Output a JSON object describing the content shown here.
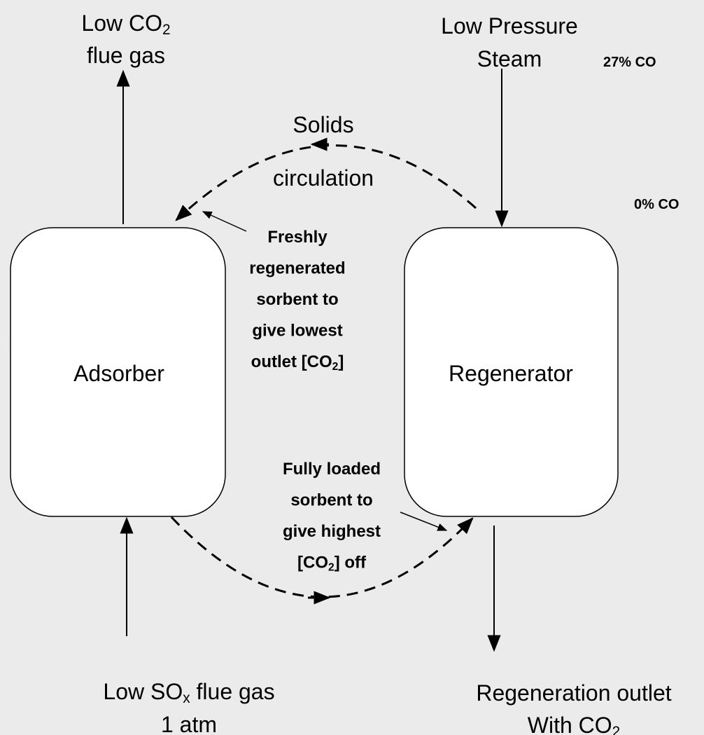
{
  "labels": {
    "low_co2_flue_gas": {
      "lines": [
        [
          {
            "text": "Low CO"
          },
          {
            "text": "2",
            "sub": true
          }
        ],
        [
          {
            "text": "flue gas"
          }
        ]
      ]
    },
    "low_pressure_steam": {
      "lines": [
        [
          {
            "text": "Low Pressure"
          }
        ],
        [
          {
            "text": "Steam"
          }
        ]
      ]
    },
    "co2_27": {
      "lines": [
        [
          {
            "text": "27% CO"
          }
        ]
      ]
    },
    "co2_0": {
      "lines": [
        [
          {
            "text": "0% CO"
          }
        ]
      ]
    },
    "solids_circulation": {
      "lines": [
        [
          {
            "text": "Solids"
          }
        ],
        [
          {
            "text": "circulation"
          }
        ]
      ]
    },
    "freshly_regenerated": {
      "lines": [
        [
          {
            "text": "Freshly"
          }
        ],
        [
          {
            "text": "regenerated"
          }
        ],
        [
          {
            "text": "sorbent to"
          }
        ],
        [
          {
            "text": "give lowest"
          }
        ],
        [
          {
            "text": "outlet [CO"
          },
          {
            "text": "2",
            "sub": true
          },
          {
            "text": "]"
          }
        ]
      ]
    },
    "adsorber": {
      "lines": [
        [
          {
            "text": "Adsorber"
          }
        ]
      ]
    },
    "regenerator": {
      "lines": [
        [
          {
            "text": "Regenerator"
          }
        ]
      ]
    },
    "fully_loaded": {
      "lines": [
        [
          {
            "text": "Fully loaded"
          }
        ],
        [
          {
            "text": "sorbent to"
          }
        ],
        [
          {
            "text": "give highest"
          }
        ],
        [
          {
            "text": "[CO"
          },
          {
            "text": "2",
            "sub": true
          },
          {
            "text": "] off"
          }
        ]
      ]
    },
    "low_sox_flue_gas": {
      "lines": [
        [
          {
            "text": "Low SO"
          },
          {
            "text": "x",
            "sub": true
          },
          {
            "text": " flue gas"
          }
        ],
        [
          {
            "text": "1 atm"
          }
        ]
      ]
    },
    "regeneration_outlet": {
      "lines": [
        [
          {
            "text": "Regeneration outlet"
          }
        ],
        [
          {
            "text": "With CO"
          },
          {
            "text": "2",
            "sub": true
          }
        ]
      ]
    }
  }
}
